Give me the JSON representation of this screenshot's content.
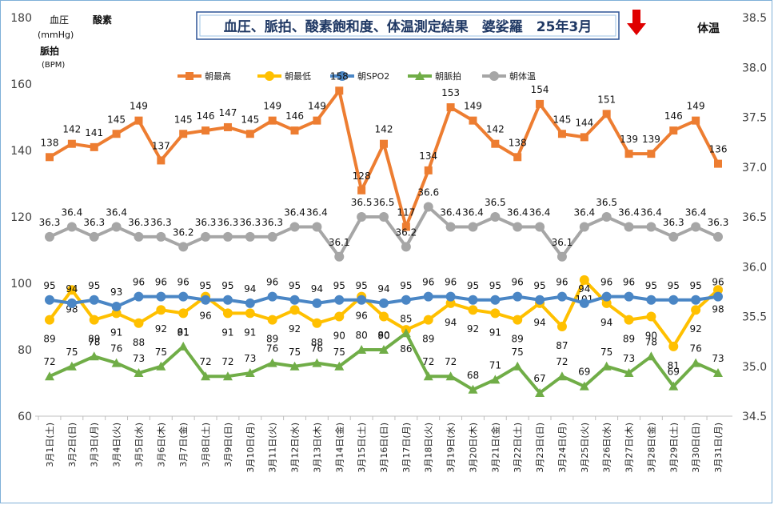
{
  "chart_data": {
    "type": "line",
    "title": "血圧、脈拍、酸素飽和度、体温測定結果　婆娑羅　25年3月",
    "left_axis_labels": [
      "血圧",
      "(mmHg)",
      "酸素",
      "脈拍",
      "(BPM)"
    ],
    "right_axis_label": "体温",
    "ylim": [
      60,
      180
    ],
    "yticks": [
      60,
      80,
      100,
      120,
      140,
      160,
      180
    ],
    "y2lim": [
      34.5,
      38.5
    ],
    "y2ticks": [
      "34.5",
      "35.0",
      "35.5",
      "36.0",
      "36.5",
      "37.0",
      "37.5",
      "38.0",
      "38.5"
    ],
    "gridlines": false,
    "legend_position": "top",
    "categories": [
      "3月1日(土)",
      "3月2日(日)",
      "3月3日(月)",
      "3月4日(火)",
      "3月5日(水)",
      "3月6日(木)",
      "3月7日(金)",
      "3月8日(土)",
      "3月9日(日)",
      "3月10日(月)",
      "3月11日(火)",
      "3月12日(水)",
      "3月13日(木)",
      "3月14日(金)",
      "3月15日(土)",
      "3月16日(日)",
      "3月17日(月)",
      "3月18日(火)",
      "3月19日(水)",
      "3月20日(木)",
      "3月21日(金)",
      "3月22日(土)",
      "3月23日(日)",
      "3月24日(月)",
      "3月25日(火)",
      "3月26日(水)",
      "3月27日(木)",
      "3月28日(金)",
      "3月29日(土)",
      "3月30日(日)",
      "3月31日(月)"
    ],
    "series": [
      {
        "name": "朝最高",
        "color": "#ed7d31",
        "marker": "square",
        "axis": "left",
        "label_pos": "above",
        "values": [
          138,
          142,
          141,
          145,
          149,
          137,
          145,
          146,
          147,
          145,
          149,
          146,
          149,
          158,
          128,
          142,
          117,
          134,
          153,
          149,
          142,
          138,
          154,
          145,
          144,
          151,
          139,
          139,
          146,
          149,
          136
        ]
      },
      {
        "name": "朝最低",
        "color": "#ffc000",
        "marker": "circle",
        "axis": "left",
        "label_pos": "below",
        "values": [
          89,
          98,
          89,
          91,
          88,
          92,
          91,
          96,
          91,
          91,
          89,
          92,
          88,
          90,
          96,
          90,
          86,
          89,
          94,
          92,
          91,
          89,
          94,
          87,
          101,
          94,
          89,
          90,
          81,
          92,
          98
        ]
      },
      {
        "name": "朝SPO2",
        "color": "#4a86c5",
        "marker": "circle",
        "axis": "left",
        "label_pos": "above",
        "values": [
          95,
          94,
          95,
          93,
          96,
          96,
          96,
          95,
          95,
          94,
          96,
          95,
          94,
          95,
          95,
          94,
          95,
          96,
          96,
          95,
          95,
          96,
          95,
          96,
          94,
          96,
          96,
          95,
          95,
          95,
          96
        ]
      },
      {
        "name": "朝脈拍",
        "color": "#70ad47",
        "marker": "triangle",
        "axis": "left",
        "label_pos": "above",
        "values": [
          72,
          75,
          78,
          76,
          73,
          75,
          81,
          72,
          72,
          73,
          76,
          75,
          76,
          75,
          80,
          80,
          85,
          72,
          72,
          68,
          71,
          75,
          67,
          72,
          69,
          75,
          73,
          78,
          69,
          76,
          73
        ]
      },
      {
        "name": "朝体温",
        "color": "#a6a6a6",
        "marker": "circle",
        "axis": "right",
        "label_pos": "above",
        "values": [
          36.3,
          36.4,
          36.3,
          36.4,
          36.3,
          36.3,
          36.2,
          36.3,
          36.3,
          36.3,
          36.3,
          36.4,
          36.4,
          36.1,
          36.5,
          36.5,
          36.2,
          36.6,
          36.4,
          36.4,
          36.5,
          36.4,
          36.4,
          36.1,
          36.4,
          36.5,
          36.4,
          36.4,
          36.3,
          36.4,
          36.3
        ]
      }
    ]
  },
  "colors": {
    "title_border": "#2f5597",
    "title_text": "#1f3864",
    "arrow": "#e00000",
    "frame": "#7fb0d8"
  },
  "icons": {
    "marker_arrow": "red-down-arrow"
  }
}
